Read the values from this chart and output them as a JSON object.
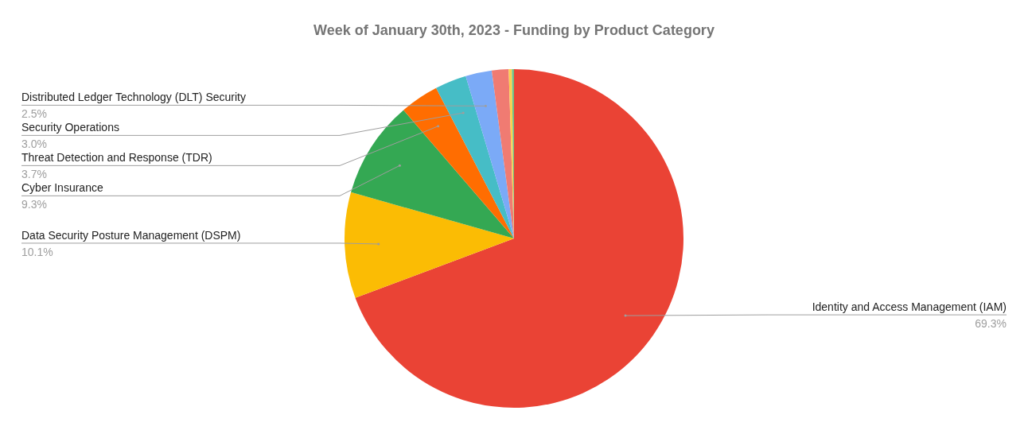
{
  "chart_data": {
    "type": "pie",
    "title": "Week of January 30th, 2023 - Funding by Product Category",
    "categories": [
      "Identity and Access Management (IAM)",
      "Data Security Posture Management (DSPM)",
      "Cyber Insurance",
      "Threat Detection and Response (TDR)",
      "Security Operations",
      "Distributed Ledger Technology (DLT) Security",
      null,
      null,
      null
    ],
    "values": [
      69.3,
      10.1,
      9.3,
      3.7,
      3.0,
      2.5,
      1.6,
      0.3,
      0.2
    ],
    "colors": [
      "#ea4335",
      "#fbbc04",
      "#34a853",
      "#ff6d01",
      "#46bdc6",
      "#7baaf7",
      "#f07b72",
      "#fcd04f",
      "#71c287"
    ],
    "value_labels": [
      "69.3%",
      "10.1%",
      "9.3%",
      "3.7%",
      "3.0%",
      "2.5%",
      null,
      null,
      null
    ]
  }
}
